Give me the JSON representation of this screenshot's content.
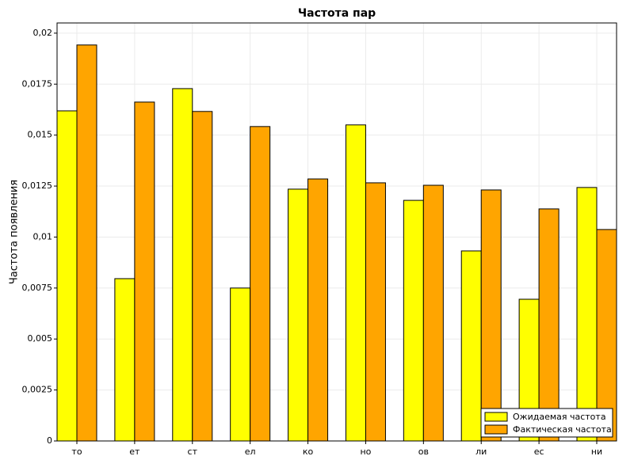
{
  "chart_data": {
    "type": "bar",
    "title": "Частота пар",
    "y_label": "Частота появления",
    "categories": [
      "то",
      "ет",
      "ст",
      "ел",
      "ко",
      "но",
      "ов",
      "ли",
      "ес",
      "ни"
    ],
    "series": [
      {
        "name": "Ожидаемая частота",
        "color": "#ffff00",
        "values": [
          0.01619,
          0.00796,
          0.01728,
          0.0075,
          0.01235,
          0.0155,
          0.0118,
          0.00932,
          0.00695,
          0.01243
        ]
      },
      {
        "name": "Фактическая частота",
        "color": "#ffa500",
        "values": [
          0.01942,
          0.01662,
          0.01616,
          0.01542,
          0.01285,
          0.01266,
          0.01254,
          0.01231,
          0.01138,
          0.01037
        ]
      }
    ],
    "ylim": [
      0,
      0.0205
    ],
    "yticks": [
      0,
      {
        "value": 0.0025,
        "label": "0,0025"
      },
      {
        "value": 0.005,
        "label": "0,005"
      },
      {
        "value": 0.0075,
        "label": "0,0075"
      },
      {
        "value": 0.01,
        "label": "0,01"
      },
      {
        "value": 0.0125,
        "label": "0,0125"
      },
      {
        "value": 0.015,
        "label": "0,015"
      },
      {
        "value": 0.0175,
        "label": "0,0175"
      },
      {
        "value": 0.02,
        "label": "0,02"
      }
    ],
    "grid": true,
    "legend": "bottom-right"
  }
}
